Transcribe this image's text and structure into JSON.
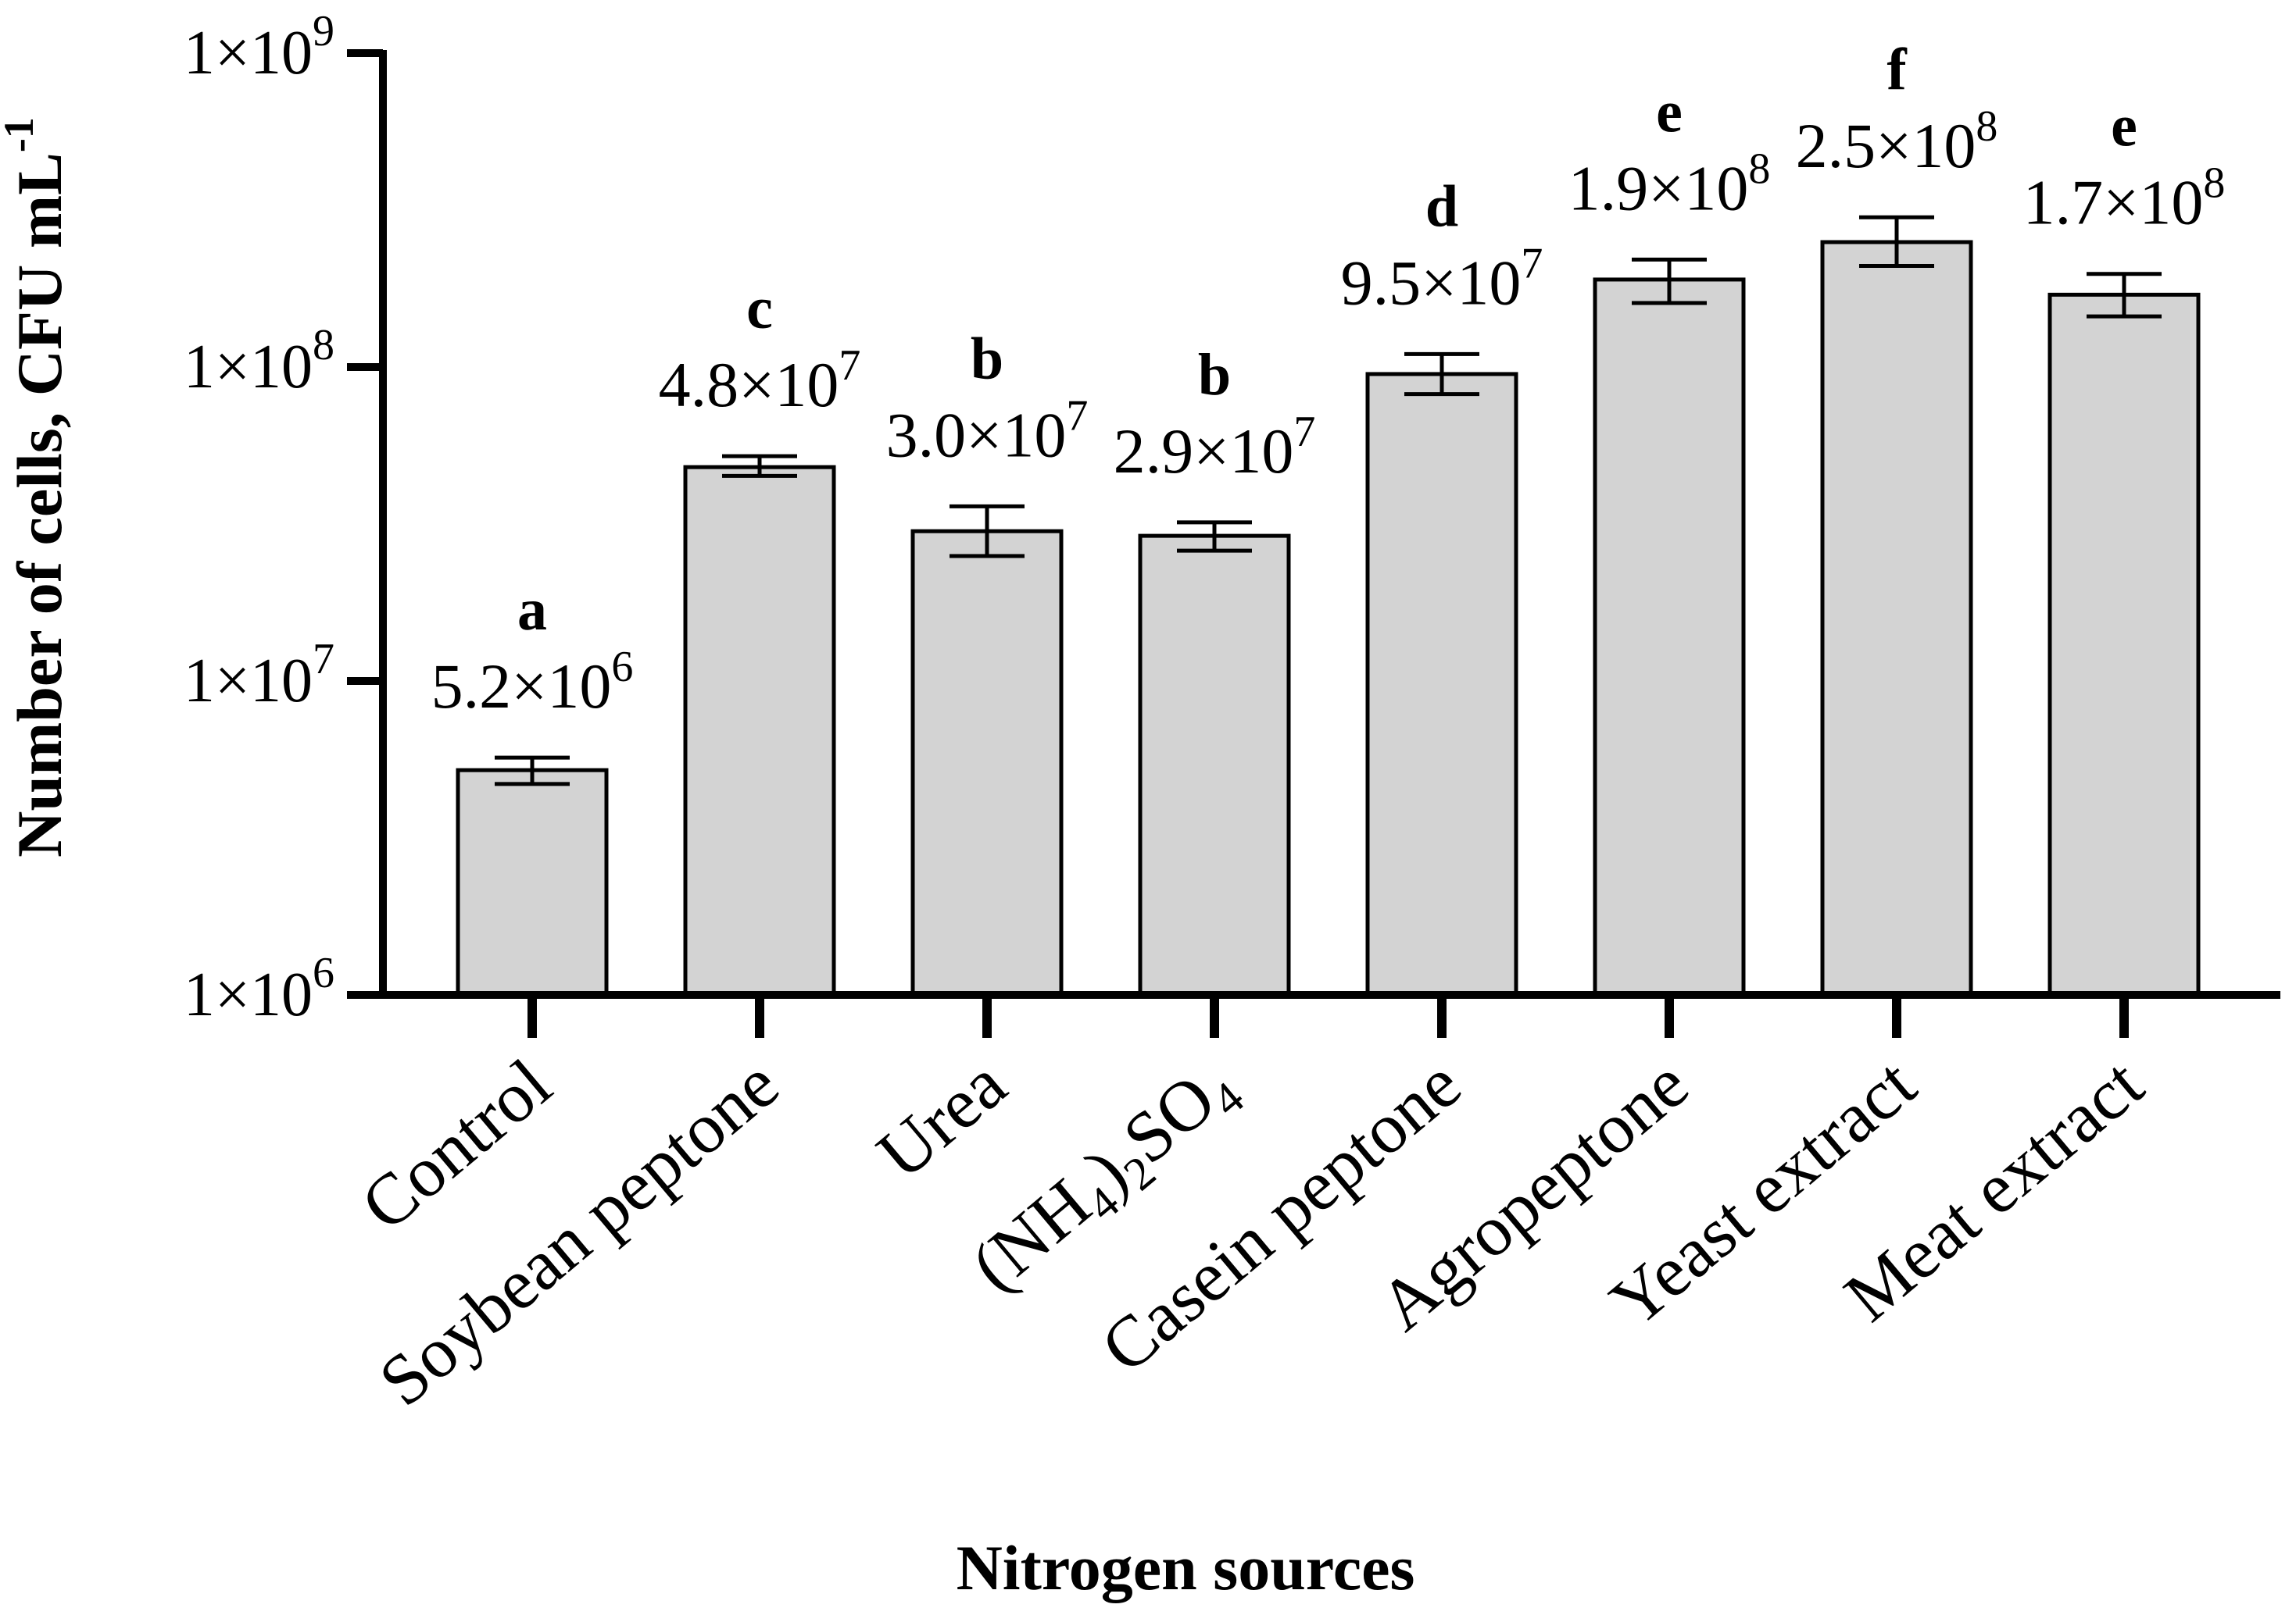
{
  "chart_data": {
    "type": "bar",
    "scale": "log",
    "ylim": [
      1000000,
      1000000000
    ],
    "ylabel": "Number of cells, CFU mL",
    "ylabel_sup": "-1",
    "xlabel": "Nitrogen sources",
    "yticks": [
      {
        "value": 1000000,
        "base": "1×10",
        "exp": "6"
      },
      {
        "value": 10000000,
        "base": "1×10",
        "exp": "7"
      },
      {
        "value": 100000000,
        "base": "1×10",
        "exp": "8"
      },
      {
        "value": 1000000000,
        "base": "1×10",
        "exp": "9"
      }
    ],
    "colors": {
      "bar_fill": "#d3d3d3",
      "bar_stroke": "#000000",
      "axis": "#000000"
    },
    "bars": [
      {
        "category": "Control",
        "value": 5200000,
        "err_low": 4700000,
        "err_high": 5700000,
        "label_base": "5.2×10",
        "label_exp": "6",
        "letter": "a"
      },
      {
        "category": "Soybean peptone",
        "value": 48000000,
        "err_low": 45000000,
        "err_high": 52000000,
        "label_base": "4.8×10",
        "label_exp": "7",
        "letter": "c"
      },
      {
        "category": "Urea",
        "value": 30000000,
        "err_low": 25000000,
        "err_high": 36000000,
        "label_base": "3.0×10",
        "label_exp": "7",
        "letter": "b"
      },
      {
        "category": "(NH4)2SO4",
        "cat_parts": [
          "(NH",
          "4",
          ")",
          "2",
          "SO",
          "4"
        ],
        "value": 29000000,
        "err_low": 26000000,
        "err_high": 32000000,
        "label_base": "2.9×10",
        "label_exp": "7",
        "letter": "b"
      },
      {
        "category": "Casein peptone",
        "value": 95000000,
        "err_low": 82000000,
        "err_high": 110000000,
        "label_base": "9.5×10",
        "label_exp": "7",
        "letter": "d"
      },
      {
        "category": "Agropeptone",
        "value": 190000000,
        "err_low": 160000000,
        "err_high": 220000000,
        "label_base": "1.9×10",
        "label_exp": "8",
        "letter": "e"
      },
      {
        "category": "Yeast extract",
        "value": 250000000,
        "err_low": 210000000,
        "err_high": 300000000,
        "label_base": "2.5×10",
        "label_exp": "8",
        "letter": "f"
      },
      {
        "category": "Meat extract",
        "value": 170000000,
        "err_low": 145000000,
        "err_high": 198000000,
        "label_base": "1.7×10",
        "label_exp": "8",
        "letter": "e"
      }
    ]
  }
}
